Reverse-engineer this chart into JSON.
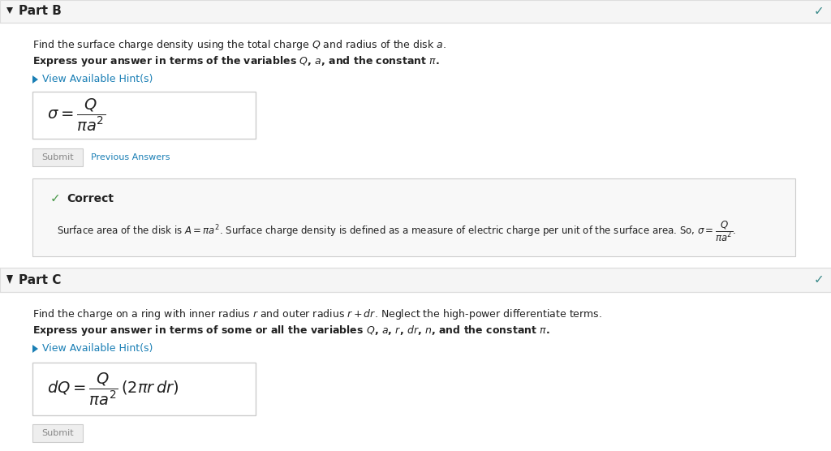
{
  "bg_color": "#ffffff",
  "header_bg": "#f5f5f5",
  "correct_bg": "#f8f8f8",
  "correct_border": "#cccccc",
  "blue_link": "#1a7fb5",
  "teal_check": "#3a8a8a",
  "green_check": "#4a9a4a",
  "text_dark": "#222222",
  "text_gray": "#888888",
  "border_color": "#cccccc",
  "header_border": "#dddddd",
  "answer_box_bg": "#ffffff",
  "part_b_header": "Part B",
  "part_c_header": "Part C",
  "submit_btn": "Submit",
  "prev_answers": "Previous Answers",
  "correct_label": "Correct",
  "part_b_hint": "View Available Hint(s)",
  "part_c_hint": "View Available Hint(s)",
  "part_b_formula": "$\\sigma = \\dfrac{Q}{\\pi a^2}$",
  "part_c_formula": "$dQ = \\dfrac{Q}{\\pi a^2}\\,(2\\pi r\\,dr)$",
  "correct_text_plain": "Surface area of the disk is ",
  "correct_text_formula": "$A = \\pi a^2$",
  "correct_text_mid": ". Surface charge density is defined as a measure of electric charge per unit of the surface area. So, ",
  "correct_text_sigma": "$\\sigma = \\dfrac{Q}{\\pi a^2}$",
  "correct_text_end": ".",
  "part_b_line1_plain": "Find the surface charge density using the total charge ",
  "part_b_line1_Q": "$Q$",
  "part_b_line1_mid": " and radius of the disk ",
  "part_b_line1_a": "$a$.",
  "part_b_line2_plain": "Express your answer in terms of the variables ",
  "part_b_line2_vars": "$Q$, $a$,",
  "part_b_line2_end": " and the constant ",
  "part_b_line2_pi": "$\\pi$.",
  "part_c_line1_plain": "Find the charge on a ring with inner radius ",
  "part_c_line1_r": "$r$",
  "part_c_line1_mid": " and outer radius ",
  "part_c_line1_rdr": "$r + dr$.",
  "part_c_line1_end": " Neglect the high-power differentiate terms.",
  "part_c_line2_plain": "Express your answer in terms of some or all the variables ",
  "part_c_line2_vars": "$Q$, $a$, $r$, $dr$, $n$,",
  "part_c_line2_end": " and the constant ",
  "part_c_line2_pi": "$\\pi$."
}
